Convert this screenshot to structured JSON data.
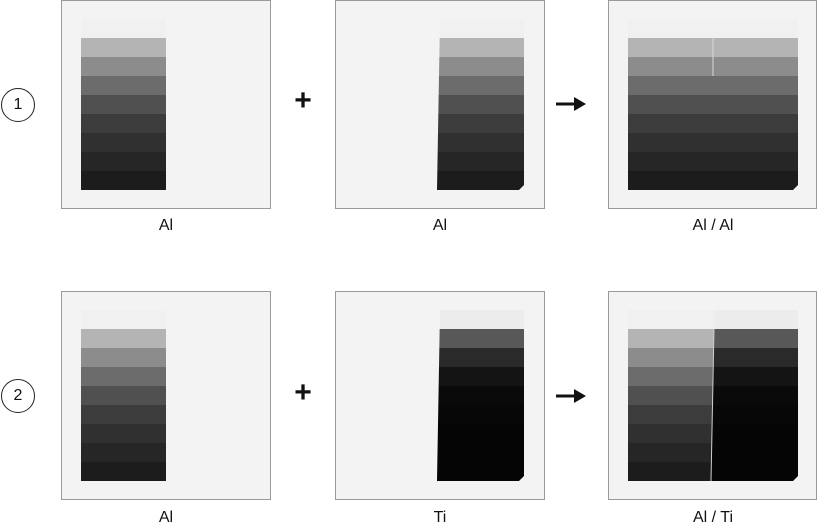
{
  "rows": [
    {
      "label": "1",
      "left": {
        "caption": "Al",
        "shades": [
          "#f0f0f0",
          "#b4b4b4",
          "#8c8c8c",
          "#6c6c6c",
          "#505050",
          "#3c3c3c",
          "#303030",
          "#262626",
          "#1c1c1c"
        ]
      },
      "middle": {
        "caption": "Al",
        "shades": [
          "#f0f0f0",
          "#b4b4b4",
          "#8c8c8c",
          "#6c6c6c",
          "#505050",
          "#3c3c3c",
          "#303030",
          "#262626",
          "#1c1c1c"
        ]
      },
      "result": {
        "caption": "Al / Al"
      }
    },
    {
      "label": "2",
      "left": {
        "caption": "Al",
        "shades": [
          "#f0f0f0",
          "#b4b4b4",
          "#8c8c8c",
          "#6c6c6c",
          "#505050",
          "#3c3c3c",
          "#303030",
          "#262626",
          "#1c1c1c"
        ]
      },
      "middle": {
        "caption": "Ti",
        "shades": [
          "#ececec",
          "#585858",
          "#2a2a2a",
          "#141414",
          "#0a0a0a",
          "#070707",
          "#050505",
          "#050505",
          "#050505"
        ]
      },
      "result": {
        "caption": "Al / Ti"
      }
    }
  ],
  "operators": {
    "plus": "+",
    "arrow": "→"
  }
}
